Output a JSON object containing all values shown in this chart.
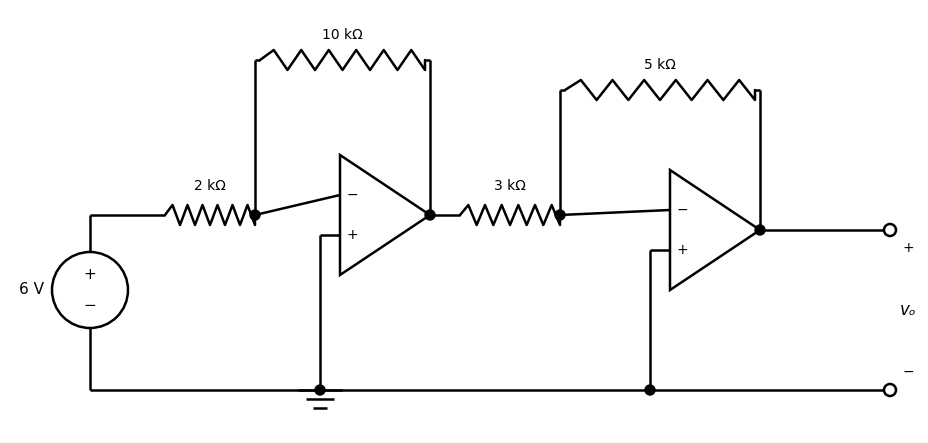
{
  "background_color": "#ffffff",
  "line_color": "#000000",
  "line_width": 1.8,
  "fig_width": 9.29,
  "fig_height": 4.43,
  "dpi": 100,
  "labels": {
    "resistor1": "2 kΩ",
    "resistor2": "10 kΩ",
    "resistor3": "3 kΩ",
    "resistor4": "5 kΩ",
    "source": "6 V",
    "op1_minus": "−",
    "op1_plus": "+",
    "op2_minus": "−",
    "op2_plus": "+",
    "vo_plus": "+",
    "vo_minus": "−",
    "vo_label": "vₒ"
  }
}
